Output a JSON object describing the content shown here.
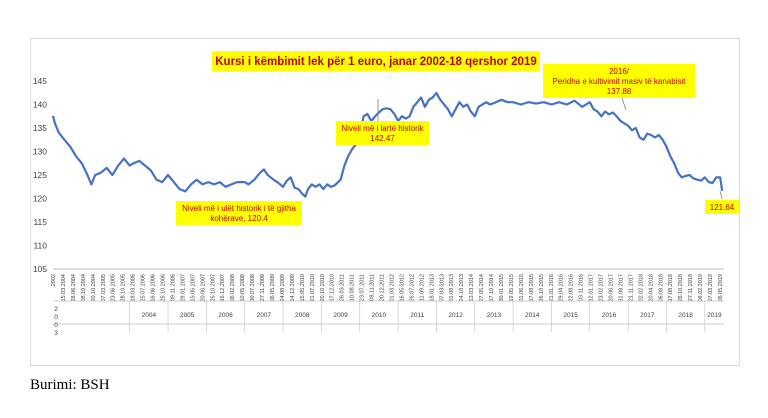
{
  "chart_data": {
    "type": "line",
    "title": "Kursi i këmbimit lek për 1 euro, janar 2002-18 qershor 2019",
    "xlabel": "",
    "ylabel": "",
    "ylim": [
      105,
      145
    ],
    "yticks": [
      105,
      110,
      115,
      120,
      125,
      130,
      135,
      140,
      145
    ],
    "grid": false,
    "years": [
      "2004",
      "2005",
      "2006",
      "2007",
      "2008",
      "2009",
      "2010",
      "2011",
      "2012",
      "2013",
      "2014",
      "2015",
      "2016",
      "2017",
      "2018",
      "2019"
    ],
    "stacked_year_label": [
      "2",
      "0",
      "0",
      "3"
    ],
    "date_labels": [
      "2002",
      "15.03.2004",
      "28.06.2004",
      "08.10.2004",
      "20.10.2004",
      "07.03.2005",
      "23.06.2005",
      "28.10.2005",
      "18.03.2006",
      "25.07.2006",
      "16.06.2006",
      "25.10.2006",
      "09.11.2006",
      "29.01.2007",
      "15.05.2007",
      "20.06.2007",
      "25.10.2007",
      "16.12.2007",
      "06.02.2008",
      "10.05.2008",
      "30.07.2008",
      "27.11.2008",
      "06.05.2009",
      "24.08.2009",
      "14.12.2009",
      "15.05.2010",
      "21.07.2010",
      "20.10.2010",
      "17.12.2010",
      "26.03.2011",
      "10.08.2011",
      "23.07.2011",
      "08.11.2011",
      "20.12.2011",
      "01.03.2012",
      "16.05.2012",
      "26.07.2012",
      "11.09.2012",
      "18.01.2013",
      "07.03.2013",
      "01.08.2013",
      "24.10.2013",
      "13.03.2014",
      "27.05.2014",
      "17.10.2014",
      "30.01.2015",
      "19.05.2015",
      "01.06.2015",
      "17.08.2015",
      "26.10.2015",
      "21.01.2016",
      "29.04.2016",
      "22.08.2016",
      "03.11.2016",
      "12.01.2017",
      "23.02.2017",
      "20.06.2017",
      "31.08.2017",
      "21.11.2017",
      "02.02.2018",
      "20.04.2018",
      "06.08.2018",
      "17.08.2018",
      "26.10.2018",
      "27.11.2018",
      "08.02.2019",
      "07.03.2019",
      "06.05.2019"
    ],
    "series": [
      {
        "values": [
          [
            2002.0,
            137.6
          ],
          [
            2002.05,
            136.0
          ],
          [
            2002.15,
            134.0
          ],
          [
            2002.3,
            132.5
          ],
          [
            2002.45,
            131.0
          ],
          [
            2002.6,
            129.0
          ],
          [
            2002.75,
            127.5
          ],
          [
            2002.9,
            125.0
          ],
          [
            2003.0,
            123.0
          ],
          [
            2003.1,
            125.0
          ],
          [
            2003.25,
            125.5
          ],
          [
            2003.4,
            126.5
          ],
          [
            2003.55,
            125.0
          ],
          [
            2003.7,
            127.0
          ],
          [
            2003.85,
            128.5
          ],
          [
            2004.0,
            127.0
          ],
          [
            2004.1,
            127.5
          ],
          [
            2004.25,
            128.0
          ],
          [
            2004.4,
            127.0
          ],
          [
            2004.55,
            126.0
          ],
          [
            2004.7,
            124.0
          ],
          [
            2004.85,
            123.5
          ],
          [
            2005.0,
            125.0
          ],
          [
            2005.15,
            123.5
          ],
          [
            2005.3,
            122.0
          ],
          [
            2005.45,
            121.5
          ],
          [
            2005.6,
            123.0
          ],
          [
            2005.75,
            124.0
          ],
          [
            2005.9,
            123.0
          ],
          [
            2006.05,
            123.5
          ],
          [
            2006.2,
            123.0
          ],
          [
            2006.35,
            123.5
          ],
          [
            2006.5,
            122.5
          ],
          [
            2006.65,
            123.0
          ],
          [
            2006.8,
            123.5
          ],
          [
            2007.0,
            123.5
          ],
          [
            2007.1,
            123.0
          ],
          [
            2007.25,
            124.0
          ],
          [
            2007.4,
            125.5
          ],
          [
            2007.5,
            126.2
          ],
          [
            2007.6,
            125.0
          ],
          [
            2007.75,
            124.0
          ],
          [
            2007.85,
            123.5
          ],
          [
            2008.0,
            122.5
          ],
          [
            2008.1,
            123.8
          ],
          [
            2008.2,
            124.5
          ],
          [
            2008.3,
            122.3
          ],
          [
            2008.4,
            122.0
          ],
          [
            2008.5,
            121.0
          ],
          [
            2008.58,
            120.4
          ],
          [
            2008.65,
            122.0
          ],
          [
            2008.75,
            123.0
          ],
          [
            2008.85,
            122.5
          ],
          [
            2008.95,
            123.0
          ],
          [
            2009.05,
            122.0
          ],
          [
            2009.15,
            123.0
          ],
          [
            2009.25,
            122.5
          ],
          [
            2009.35,
            122.8
          ],
          [
            2009.5,
            124.0
          ],
          [
            2009.6,
            127.0
          ],
          [
            2009.7,
            129.0
          ],
          [
            2009.8,
            130.5
          ],
          [
            2009.9,
            131.5
          ],
          [
            2010.0,
            133.5
          ],
          [
            2010.1,
            137.5
          ],
          [
            2010.2,
            138.0
          ],
          [
            2010.3,
            136.5
          ],
          [
            2010.4,
            137.5
          ],
          [
            2010.5,
            138.3
          ],
          [
            2010.6,
            139.0
          ],
          [
            2010.7,
            139.2
          ],
          [
            2010.8,
            139.0
          ],
          [
            2010.9,
            138.0
          ],
          [
            2011.0,
            136.5
          ],
          [
            2011.1,
            137.5
          ],
          [
            2011.2,
            137.0
          ],
          [
            2011.3,
            137.5
          ],
          [
            2011.4,
            139.5
          ],
          [
            2011.5,
            140.5
          ],
          [
            2011.6,
            141.5
          ],
          [
            2011.7,
            139.5
          ],
          [
            2011.8,
            141.0
          ],
          [
            2011.9,
            141.5
          ],
          [
            2012.0,
            142.47
          ],
          [
            2012.1,
            141.0
          ],
          [
            2012.2,
            140.0
          ],
          [
            2012.3,
            139.0
          ],
          [
            2012.4,
            137.5
          ],
          [
            2012.5,
            139.0
          ],
          [
            2012.6,
            140.5
          ],
          [
            2012.7,
            139.5
          ],
          [
            2012.8,
            140.0
          ],
          [
            2012.9,
            138.5
          ],
          [
            2013.0,
            137.5
          ],
          [
            2013.1,
            139.5
          ],
          [
            2013.2,
            140.0
          ],
          [
            2013.3,
            140.5
          ],
          [
            2013.4,
            140.0
          ],
          [
            2013.55,
            140.5
          ],
          [
            2013.7,
            141.0
          ],
          [
            2013.85,
            140.5
          ],
          [
            2014.0,
            140.5
          ],
          [
            2014.2,
            140.0
          ],
          [
            2014.4,
            140.5
          ],
          [
            2014.6,
            140.2
          ],
          [
            2014.8,
            140.5
          ],
          [
            2015.0,
            140.0
          ],
          [
            2015.2,
            140.5
          ],
          [
            2015.4,
            140.0
          ],
          [
            2015.6,
            140.8
          ],
          [
            2015.8,
            139.5
          ],
          [
            2016.0,
            140.5
          ],
          [
            2016.1,
            139.0
          ],
          [
            2016.2,
            138.5
          ],
          [
            2016.3,
            137.5
          ],
          [
            2016.4,
            138.5
          ],
          [
            2016.5,
            137.9
          ],
          [
            2016.6,
            138.3
          ],
          [
            2016.7,
            137.5
          ],
          [
            2016.8,
            136.5
          ],
          [
            2016.9,
            136.0
          ],
          [
            2017.0,
            135.5
          ],
          [
            2017.1,
            134.5
          ],
          [
            2017.2,
            135.0
          ],
          [
            2017.3,
            133.0
          ],
          [
            2017.4,
            132.5
          ],
          [
            2017.5,
            133.8
          ],
          [
            2017.6,
            133.5
          ],
          [
            2017.7,
            133.0
          ],
          [
            2017.8,
            133.5
          ],
          [
            2017.9,
            132.5
          ],
          [
            2018.0,
            131.0
          ],
          [
            2018.1,
            129.0
          ],
          [
            2018.2,
            127.5
          ],
          [
            2018.3,
            125.5
          ],
          [
            2018.4,
            124.5
          ],
          [
            2018.5,
            124.8
          ],
          [
            2018.6,
            125.0
          ],
          [
            2018.7,
            124.3
          ],
          [
            2018.8,
            124.0
          ],
          [
            2018.9,
            123.8
          ],
          [
            2019.0,
            124.5
          ],
          [
            2019.1,
            123.5
          ],
          [
            2019.2,
            123.3
          ],
          [
            2019.3,
            124.5
          ],
          [
            2019.4,
            124.5
          ],
          [
            2019.45,
            121.64
          ]
        ]
      }
    ],
    "annotations": [
      {
        "text": "Niveli më i ulët historik i të gjitha kohërave, 120.4",
        "lines": [
          "Niveli më i ulët historik i të gjitha",
          "kohërave, 120.4"
        ]
      },
      {
        "text": "Niveli më i lartë historik 142.47",
        "lines": [
          "Niveli më i lartë historik",
          "142.47"
        ]
      },
      {
        "text": "2016/ Peridha e kultivimit masiv të kanabisit 137.88",
        "lines": [
          "2016/",
          "Peridha e kultivimit masiv të kanabisit",
          "137.88"
        ]
      },
      {
        "text": "121.64",
        "lines": [
          "121.64"
        ]
      }
    ],
    "colors": {
      "line": "#4472c4",
      "title_bg": "#ffff00",
      "title_text": "#c00000",
      "annotation_bg": "#ffff00",
      "annotation_text": "#c00000"
    }
  },
  "source": "Burimi: BSH"
}
